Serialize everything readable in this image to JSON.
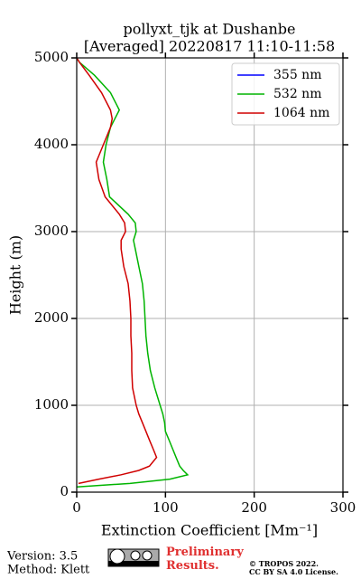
{
  "chart_data": {
    "type": "line",
    "title": "pollyxt_tjk at Dushanbe",
    "subtitle": "[Averaged] 20220817 11:10-11:58",
    "x_label": "Extinction Coefficient [Mm⁻¹]",
    "y_label": "Height (m)",
    "y": [
      60,
      100,
      150,
      200,
      250,
      300,
      400,
      500,
      600,
      700,
      800,
      900,
      1000,
      1200,
      1400,
      1600,
      1800,
      2000,
      2200,
      2400,
      2600,
      2800,
      2900,
      3000,
      3100,
      3200,
      3400,
      3600,
      3800,
      4000,
      4200,
      4300,
      4400,
      4600,
      4800,
      4950,
      5000
    ],
    "series": [
      {
        "name": "355 nm",
        "color": "#0000ff",
        "values": [
          null,
          null,
          null,
          null,
          null,
          null,
          null,
          null,
          null,
          null,
          null,
          null,
          null,
          null,
          null,
          null,
          null,
          null,
          null,
          null,
          null,
          null,
          null,
          null,
          null,
          null,
          null,
          null,
          null,
          null,
          null,
          null,
          null,
          null,
          null,
          null,
          null
        ]
      },
      {
        "name": "532 nm",
        "color": "#00b400",
        "values": [
          0,
          60,
          105,
          125,
          120,
          116,
          112,
          108,
          104,
          100,
          99,
          97,
          94,
          88,
          83,
          80,
          78,
          77,
          76,
          74,
          70,
          66,
          64,
          67,
          66,
          58,
          37,
          34,
          30,
          33,
          38,
          43,
          48,
          38,
          20,
          3,
          0
        ]
      },
      {
        "name": "1064 nm",
        "color": "#d00000",
        "values": [
          null,
          2,
          25,
          50,
          70,
          82,
          90,
          86,
          82,
          78,
          74,
          70,
          67,
          63,
          62,
          62,
          61,
          61,
          60,
          58,
          53,
          50,
          50,
          55,
          54,
          48,
          32,
          25,
          22,
          30,
          38,
          40,
          38,
          28,
          14,
          3,
          0
        ]
      }
    ],
    "xlim": [
      0,
      300
    ],
    "xticks": [
      0,
      100,
      200,
      300
    ],
    "ylim": [
      0,
      5000
    ],
    "yticks": [
      0,
      1000,
      2000,
      3000,
      4000,
      5000
    ],
    "grid": true,
    "legend": "upper right"
  },
  "footer": {
    "version": "Version: 3.5",
    "method": "Method: Klett",
    "notice": "Preliminary Results.",
    "copyright": "© TROPOS 2022.",
    "license": "CC BY SA 4.0 License."
  }
}
